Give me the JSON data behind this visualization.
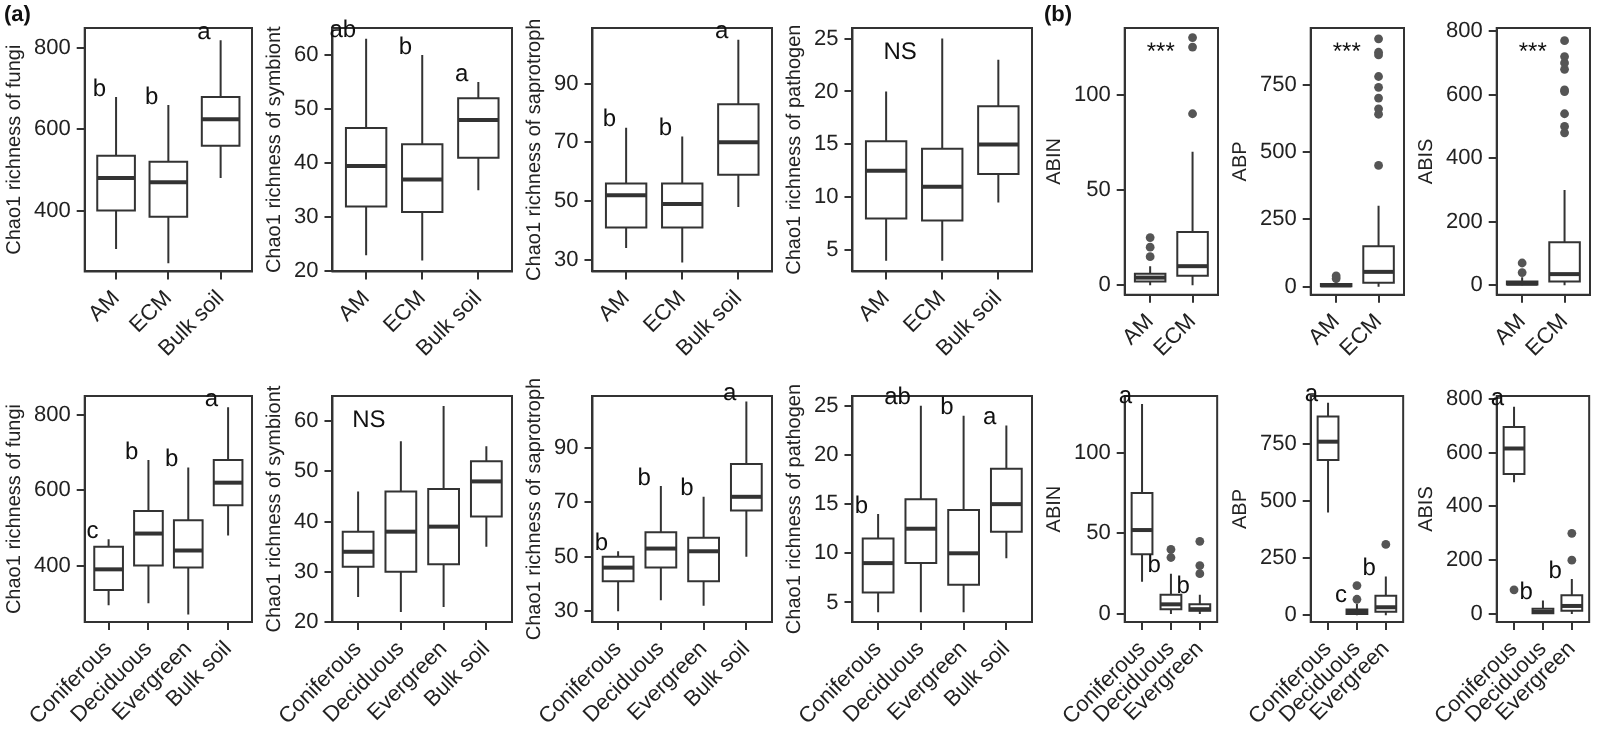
{
  "chart_data": [
    {
      "type": "box",
      "ylabel": "Chao1 richness of fungi",
      "categories": [
        "AM",
        "ECM",
        "Bulk soil"
      ],
      "ylim": [
        250,
        850
      ],
      "yticks": [
        400,
        600,
        800
      ],
      "title": "(a)",
      "annotations": [
        {
          "text": "b",
          "x": "AM",
          "y": 680
        },
        {
          "text": "b",
          "x": "ECM",
          "y": 660
        },
        {
          "text": "a",
          "x": "Bulk soil",
          "y": 820
        }
      ],
      "boxes": [
        {
          "low": 305,
          "q1": 400,
          "median": 480,
          "q3": 535,
          "high": 680
        },
        {
          "low": 270,
          "q1": 385,
          "median": 470,
          "q3": 520,
          "high": 660
        },
        {
          "low": 480,
          "q1": 560,
          "median": 625,
          "q3": 680,
          "high": 820
        }
      ]
    },
    {
      "type": "box",
      "ylabel": "Chao1 richness of symbiont",
      "categories": [
        "AM",
        "ECM",
        "Bulk soil"
      ],
      "ylim": [
        20,
        65
      ],
      "yticks": [
        20,
        30,
        40,
        50,
        60
      ],
      "annotations": [
        {
          "text": "ab",
          "x": "AM",
          "y": 63
        },
        {
          "text": "b",
          "x": "ECM",
          "y": 60
        },
        {
          "text": "a",
          "x": "Bulk soil",
          "y": 55
        }
      ],
      "boxes": [
        {
          "low": 23,
          "q1": 32,
          "median": 39.5,
          "q3": 46.5,
          "high": 63
        },
        {
          "low": 22,
          "q1": 31,
          "median": 37,
          "q3": 43.5,
          "high": 60
        },
        {
          "low": 35,
          "q1": 41,
          "median": 48,
          "q3": 52,
          "high": 55
        }
      ]
    },
    {
      "type": "box",
      "ylabel": "Chao1 richness of saprotroph",
      "categories": [
        "AM",
        "ECM",
        "Bulk soil"
      ],
      "ylim": [
        26,
        109
      ],
      "yticks": [
        30,
        50,
        70,
        90
      ],
      "annotations": [
        {
          "text": "b",
          "x": "AM",
          "y": 75
        },
        {
          "text": "b",
          "x": "ECM",
          "y": 72
        },
        {
          "text": "a",
          "x": "Bulk soil",
          "y": 105
        }
      ],
      "boxes": [
        {
          "low": 34,
          "q1": 41,
          "median": 52,
          "q3": 56,
          "high": 75
        },
        {
          "low": 29,
          "q1": 41,
          "median": 49,
          "q3": 56,
          "high": 72
        },
        {
          "low": 48,
          "q1": 59,
          "median": 70,
          "q3": 83,
          "high": 105
        }
      ]
    },
    {
      "type": "box",
      "ylabel": "Chao1 richness of pathogen",
      "categories": [
        "AM",
        "ECM",
        "Bulk soil"
      ],
      "ylim": [
        3,
        26
      ],
      "yticks": [
        5,
        10,
        15,
        20,
        25
      ],
      "annotations": [
        "NS"
      ],
      "boxes": [
        {
          "low": 4,
          "q1": 8,
          "median": 12.5,
          "q3": 15.3,
          "high": 20
        },
        {
          "low": 4,
          "q1": 7.8,
          "median": 11,
          "q3": 14.6,
          "high": 25
        },
        {
          "low": 9.5,
          "q1": 12.2,
          "median": 15,
          "q3": 18.6,
          "high": 23
        }
      ]
    },
    {
      "type": "box",
      "ylabel": "ABIN",
      "categories": [
        "AM",
        "ECM"
      ],
      "ylim": [
        -5,
        135
      ],
      "yticks": [
        0,
        50,
        100
      ],
      "title": "(b)",
      "annotations": [
        "***"
      ],
      "boxes": [
        {
          "low": 0,
          "q1": 2,
          "median": 4,
          "q3": 6,
          "high": 10,
          "outliers": [
            15,
            20,
            25
          ]
        },
        {
          "low": 0,
          "q1": 5,
          "median": 10,
          "q3": 28,
          "high": 70,
          "outliers": [
            90,
            125,
            130
          ]
        }
      ]
    },
    {
      "type": "box",
      "ylabel": "ABP",
      "categories": [
        "AM",
        "ECM"
      ],
      "ylim": [
        -30,
        960
      ],
      "yticks": [
        0,
        250,
        500,
        750
      ],
      "annotations": [
        "***"
      ],
      "boxes": [
        {
          "low": 0,
          "q1": 2,
          "median": 5,
          "q3": 10,
          "high": 20,
          "outliers": [
            30,
            40
          ]
        },
        {
          "low": 0,
          "q1": 15,
          "median": 55,
          "q3": 150,
          "high": 300,
          "outliers": [
            450,
            640,
            660,
            700,
            740,
            780,
            860,
            870,
            920
          ]
        }
      ]
    },
    {
      "type": "box",
      "ylabel": "ABIS",
      "categories": [
        "AM",
        "ECM"
      ],
      "ylim": [
        -30,
        810
      ],
      "yticks": [
        0,
        200,
        400,
        600,
        800
      ],
      "annotations": [
        "***"
      ],
      "boxes": [
        {
          "low": 0,
          "q1": 2,
          "median": 5,
          "q3": 12,
          "high": 25,
          "outliers": [
            40,
            70
          ]
        },
        {
          "low": 0,
          "q1": 12,
          "median": 35,
          "q3": 135,
          "high": 300,
          "outliers": [
            480,
            500,
            540,
            610,
            615,
            680,
            700,
            720,
            770
          ]
        }
      ]
    },
    {
      "type": "box",
      "ylabel": "Chao1 richness of fungi",
      "categories": [
        "Coniferous",
        "Deciduous",
        "Evergreen",
        "Bulk soil"
      ],
      "ylim": [
        250,
        850
      ],
      "yticks": [
        400,
        600,
        800
      ],
      "annotations": [
        {
          "text": "c",
          "x": "Coniferous",
          "y": 470
        },
        {
          "text": "b",
          "x": "Deciduous",
          "y": 680
        },
        {
          "text": "b",
          "x": "Evergreen",
          "y": 660
        },
        {
          "text": "a",
          "x": "Bulk soil",
          "y": 820
        }
      ],
      "boxes": [
        {
          "low": 295,
          "q1": 335,
          "median": 390,
          "q3": 450,
          "high": 470
        },
        {
          "low": 300,
          "q1": 400,
          "median": 485,
          "q3": 545,
          "high": 680
        },
        {
          "low": 270,
          "q1": 395,
          "median": 440,
          "q3": 520,
          "high": 660
        },
        {
          "low": 480,
          "q1": 560,
          "median": 620,
          "q3": 680,
          "high": 820
        }
      ]
    },
    {
      "type": "box",
      "ylabel": "Chao1 richness of symbiont",
      "categories": [
        "Coniferous",
        "Deciduous",
        "Evergreen",
        "Bulk soil"
      ],
      "ylim": [
        20,
        65
      ],
      "yticks": [
        20,
        30,
        40,
        50,
        60
      ],
      "annotations": [
        "NS"
      ],
      "boxes": [
        {
          "low": 25,
          "q1": 31,
          "median": 34,
          "q3": 38,
          "high": 46
        },
        {
          "low": 22,
          "q1": 30,
          "median": 38,
          "q3": 46,
          "high": 56
        },
        {
          "low": 23,
          "q1": 31.5,
          "median": 39,
          "q3": 46.5,
          "high": 63
        },
        {
          "low": 35,
          "q1": 41,
          "median": 48,
          "q3": 52,
          "high": 55
        }
      ]
    },
    {
      "type": "box",
      "ylabel": "Chao1 richness of saprotroph",
      "categories": [
        "Coniferous",
        "Deciduous",
        "Evergreen",
        "Bulk soil"
      ],
      "ylim": [
        26,
        109
      ],
      "yticks": [
        30,
        50,
        70,
        90
      ],
      "annotations": [
        {
          "text": "b",
          "x": "Coniferous",
          "y": 52
        },
        {
          "text": "b",
          "x": "Deciduous",
          "y": 76
        },
        {
          "text": "b",
          "x": "Evergreen",
          "y": 72
        },
        {
          "text": "a",
          "x": "Bulk soil",
          "y": 107
        }
      ],
      "boxes": [
        {
          "low": 30,
          "q1": 41,
          "median": 46,
          "q3": 50,
          "high": 52
        },
        {
          "low": 34,
          "q1": 46,
          "median": 53,
          "q3": 59,
          "high": 76
        },
        {
          "low": 32,
          "q1": 41,
          "median": 52,
          "q3": 57,
          "high": 72
        },
        {
          "low": 50,
          "q1": 67,
          "median": 72,
          "q3": 84,
          "high": 107
        }
      ]
    },
    {
      "type": "box",
      "ylabel": "Chao1 richness of pathogen",
      "categories": [
        "Coniferous",
        "Deciduous",
        "Evergreen",
        "Bulk soil"
      ],
      "ylim": [
        3,
        26
      ],
      "yticks": [
        5,
        10,
        15,
        20,
        25
      ],
      "annotations": [
        {
          "text": "b",
          "x": "Coniferous",
          "y": 14
        },
        {
          "text": "ab",
          "x": "Deciduous",
          "y": 25
        },
        {
          "text": "b",
          "x": "Evergreen",
          "y": 24
        },
        {
          "text": "a",
          "x": "Bulk soil",
          "y": 23
        }
      ],
      "boxes": [
        {
          "low": 4,
          "q1": 6,
          "median": 9,
          "q3": 11.5,
          "high": 14
        },
        {
          "low": 4,
          "q1": 9,
          "median": 12.5,
          "q3": 15.5,
          "high": 25
        },
        {
          "low": 4,
          "q1": 6.8,
          "median": 10,
          "q3": 14.4,
          "high": 24
        },
        {
          "low": 9.5,
          "q1": 12.2,
          "median": 15,
          "q3": 18.6,
          "high": 23
        }
      ]
    },
    {
      "type": "box",
      "ylabel": "ABIN",
      "categories": [
        "Coniferous",
        "Deciduous",
        "Evergreen"
      ],
      "ylim": [
        -5,
        135
      ],
      "yticks": [
        0,
        50,
        100
      ],
      "annotations": [
        {
          "text": "a",
          "x": "Coniferous",
          "y": 130
        },
        {
          "text": "b",
          "x": "Deciduous",
          "y": 25
        },
        {
          "text": "b",
          "x": "Evergreen",
          "y": 12
        }
      ],
      "boxes": [
        {
          "low": 20,
          "q1": 37,
          "median": 52,
          "q3": 75,
          "high": 130
        },
        {
          "low": 0,
          "q1": 3,
          "median": 6,
          "q3": 12,
          "high": 25,
          "outliers": [
            35,
            40
          ]
        },
        {
          "low": 0,
          "q1": 2,
          "median": 3,
          "q3": 6,
          "high": 12,
          "outliers": [
            25,
            30,
            45
          ]
        }
      ]
    },
    {
      "type": "box",
      "ylabel": "ABP",
      "categories": [
        "Coniferous",
        "Deciduous",
        "Evergreen"
      ],
      "ylim": [
        -30,
        960
      ],
      "yticks": [
        0,
        250,
        500,
        750
      ],
      "annotations": [
        {
          "text": "a",
          "x": "Coniferous",
          "y": 930
        },
        {
          "text": "c",
          "x": "Deciduous",
          "y": 50
        },
        {
          "text": "b",
          "x": "Evergreen",
          "y": 170
        }
      ],
      "boxes": [
        {
          "low": 450,
          "q1": 680,
          "median": 760,
          "q3": 870,
          "high": 930
        },
        {
          "low": 0,
          "q1": 5,
          "median": 15,
          "q3": 25,
          "high": 50,
          "outliers": [
            70,
            130
          ]
        },
        {
          "low": 0,
          "q1": 15,
          "median": 35,
          "q3": 85,
          "high": 170,
          "outliers": [
            310
          ]
        }
      ]
    },
    {
      "type": "box",
      "ylabel": "ABIS",
      "categories": [
        "Coniferous",
        "Deciduous",
        "Evergreen"
      ],
      "ylim": [
        -30,
        810
      ],
      "yticks": [
        0,
        200,
        400,
        600,
        800
      ],
      "annotations": [
        {
          "text": "a",
          "x": "Coniferous",
          "y": 770
        },
        {
          "text": "b",
          "x": "Deciduous",
          "y": 50
        },
        {
          "text": "b",
          "x": "Evergreen",
          "y": 130
        }
      ],
      "boxes": [
        {
          "low": 490,
          "q1": 520,
          "median": 615,
          "q3": 695,
          "high": 770,
          "outliers": [
            90
          ]
        },
        {
          "low": 0,
          "q1": 3,
          "median": 8,
          "q3": 20,
          "high": 50
        },
        {
          "low": 0,
          "q1": 12,
          "median": 30,
          "q3": 70,
          "high": 130,
          "outliers": [
            200,
            300
          ]
        }
      ]
    }
  ]
}
